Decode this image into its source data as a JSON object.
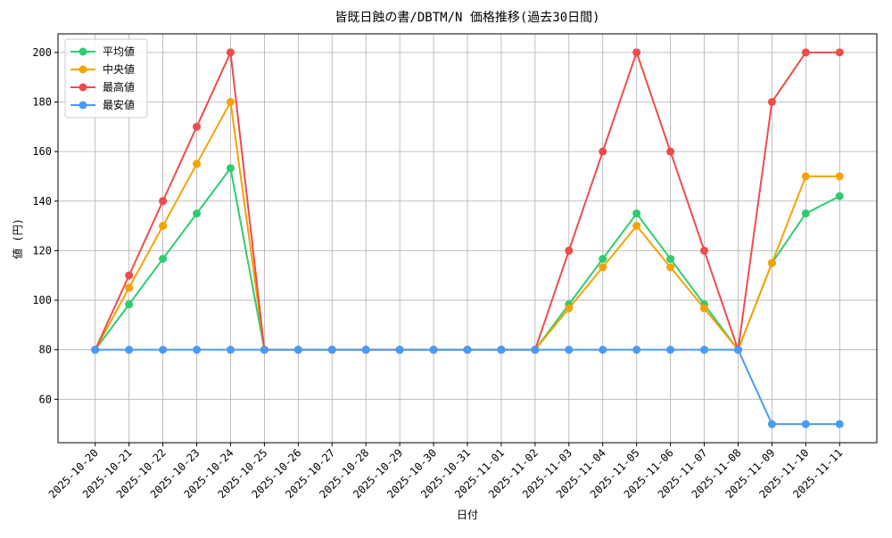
{
  "chart_data": {
    "type": "line",
    "title": "皆既日蝕の書/DBTM/N 価格推移(過去30日間)",
    "x_label": "日付",
    "y_label": "値 (円)",
    "categories": [
      "2025-10-20",
      "2025-10-21",
      "2025-10-22",
      "2025-10-23",
      "2025-10-24",
      "2025-10-25",
      "2025-10-26",
      "2025-10-27",
      "2025-10-28",
      "2025-10-29",
      "2025-10-30",
      "2025-10-31",
      "2025-11-01",
      "2025-11-02",
      "2025-11-03",
      "2025-11-04",
      "2025-11-05",
      "2025-11-06",
      "2025-11-07",
      "2025-11-08",
      "2025-11-09",
      "2025-11-10",
      "2025-11-11"
    ],
    "series": [
      {
        "name": "平均値",
        "color": "#2ecc71",
        "values": [
          80,
          98.3,
          116.7,
          135,
          153.3,
          80,
          80,
          80,
          80,
          80,
          80,
          80,
          80,
          80,
          98.3,
          116.7,
          135,
          116.7,
          98.3,
          80,
          115,
          135,
          142
        ]
      },
      {
        "name": "中央値",
        "color": "#f5a300",
        "values": [
          80,
          105,
          130,
          155,
          180,
          80,
          80,
          80,
          80,
          80,
          80,
          80,
          80,
          80,
          96.7,
          113.3,
          130,
          113.3,
          96.7,
          80,
          115,
          150,
          150
        ]
      },
      {
        "name": "最高値",
        "color": "#ef4b4b",
        "values": [
          80,
          110,
          140,
          170,
          200,
          80,
          80,
          80,
          80,
          80,
          80,
          80,
          80,
          80,
          120,
          160,
          200,
          160,
          120,
          80,
          180,
          200,
          200
        ]
      },
      {
        "name": "最安値",
        "color": "#4a9af5",
        "values": [
          80,
          80,
          80,
          80,
          80,
          80,
          80,
          80,
          80,
          80,
          80,
          80,
          80,
          80,
          80,
          80,
          80,
          80,
          80,
          80,
          50,
          50,
          50
        ]
      }
    ],
    "ylim": [
      42.5,
      207.5
    ],
    "yticks": [
      60,
      80,
      100,
      120,
      140,
      160,
      180,
      200
    ],
    "grid": true,
    "legend": "upper left"
  }
}
